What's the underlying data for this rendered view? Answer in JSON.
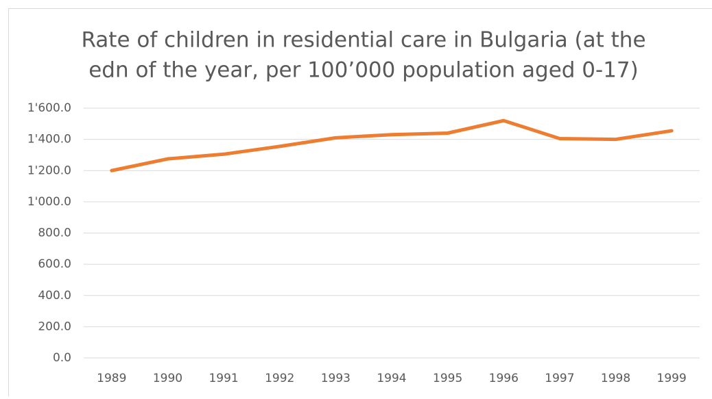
{
  "chart_data": {
    "type": "line",
    "title": [
      "Rate of children in residential care in Bulgaria (at the",
      "edn of the year, per 100’000 population aged 0-17)"
    ],
    "categories": [
      "1989",
      "1990",
      "1991",
      "1992",
      "1993",
      "1994",
      "1995",
      "1996",
      "1997",
      "1998",
      "1999"
    ],
    "series": [
      {
        "name": "Rate",
        "color": "#ed7d31",
        "values": [
          1200,
          1275,
          1305,
          1355,
          1410,
          1430,
          1440,
          1520,
          1405,
          1400,
          1455
        ]
      }
    ],
    "ylim": [
      0,
      1600
    ],
    "yticks": [
      {
        "value": 0,
        "label": "0.0"
      },
      {
        "value": 200,
        "label": "200.0"
      },
      {
        "value": 400,
        "label": "400.0"
      },
      {
        "value": 600,
        "label": "600.0"
      },
      {
        "value": 800,
        "label": "800.0"
      },
      {
        "value": 1000,
        "label": "1'000.0"
      },
      {
        "value": 1200,
        "label": "1'200.0"
      },
      {
        "value": 1400,
        "label": "1'400.0"
      },
      {
        "value": 1600,
        "label": "1'600.0"
      }
    ],
    "grid": true
  }
}
